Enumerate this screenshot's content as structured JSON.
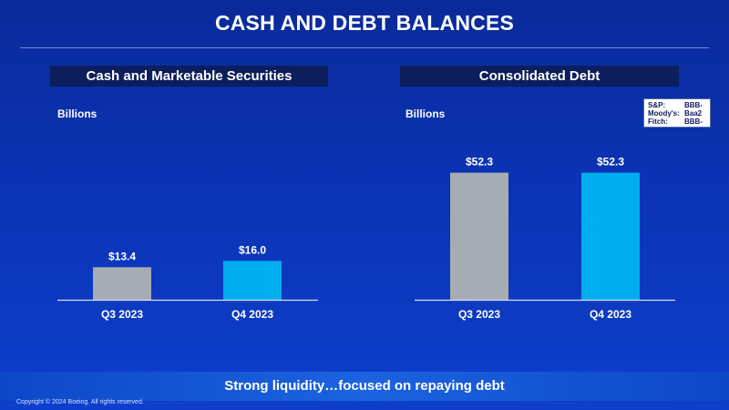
{
  "slide": {
    "title": "CASH AND DEBT BALANCES",
    "footer": "Strong liquidity…focused on repaying debt",
    "copyright": "Copyright © 2024 Boeing. All rights reserved."
  },
  "ratings": [
    {
      "agency": "S&P:",
      "rating": "BBB-"
    },
    {
      "agency": "Moody's:",
      "rating": "Baa2"
    },
    {
      "agency": "Fitch:",
      "rating": "BBB-"
    }
  ],
  "colors": {
    "q3_bar": "#a6acb3",
    "q4_bar": "#00aeef",
    "panel_header": "#0c1e5c",
    "background": "#0b33b4"
  },
  "chart_data": [
    {
      "type": "bar",
      "title": "Cash and Marketable Securities",
      "ylabel": "Billions",
      "categories": [
        "Q3 2023",
        "Q4 2023"
      ],
      "values": [
        13.4,
        16.0
      ],
      "value_labels": [
        "$13.4",
        "$16.0"
      ],
      "ylim": [
        0,
        60
      ],
      "grid": false
    },
    {
      "type": "bar",
      "title": "Consolidated Debt",
      "ylabel": "Billions",
      "categories": [
        "Q3 2023",
        "Q4 2023"
      ],
      "values": [
        52.3,
        52.3
      ],
      "value_labels": [
        "$52.3",
        "$52.3"
      ],
      "ylim": [
        0,
        60
      ],
      "grid": false
    }
  ]
}
